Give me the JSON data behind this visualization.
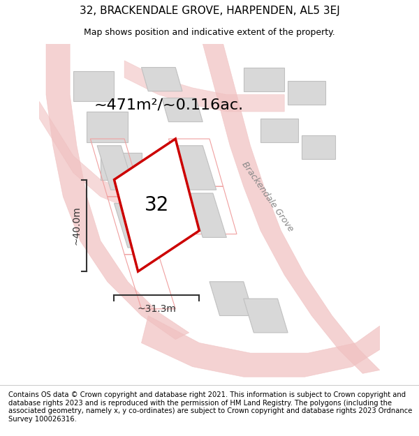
{
  "title": "32, BRACKENDALE GROVE, HARPENDEN, AL5 3EJ",
  "subtitle": "Map shows position and indicative extent of the property.",
  "footer": "Contains OS data © Crown copyright and database right 2021. This information is subject to Crown copyright and database rights 2023 and is reproduced with the permission of HM Land Registry. The polygons (including the associated geometry, namely x, y co-ordinates) are subject to Crown copyright and database rights 2023 Ordnance Survey 100026316.",
  "area_label": "~471m²/~0.116ac.",
  "width_label": "~31.3m",
  "height_label": "~40.0m",
  "street_label": "Brackendale Grove",
  "plot_number": "32",
  "bg_color": "#f5f5f5",
  "map_bg": "#f0f0f0",
  "plot_color_fill": "#ffffff",
  "plot_color_edge": "#cc0000",
  "road_color": "#f0c0c0",
  "building_color": "#d8d8d8",
  "building_edge": "#c0c0c0",
  "dim_color": "#333333",
  "title_fontsize": 11,
  "subtitle_fontsize": 9,
  "footer_fontsize": 7.2,
  "area_fontsize": 16,
  "plot_num_fontsize": 20,
  "street_fontsize": 9,
  "dim_fontsize": 10
}
